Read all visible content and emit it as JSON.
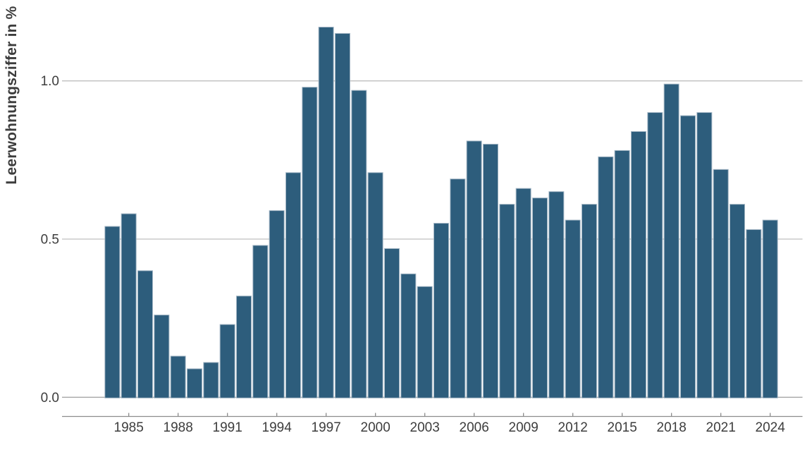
{
  "chart_data": {
    "type": "bar",
    "title": "",
    "ylabel": "Leerwohnungsziffer in %",
    "xlabel": "",
    "x": [
      1984,
      1985,
      1986,
      1987,
      1988,
      1989,
      1990,
      1991,
      1992,
      1993,
      1994,
      1995,
      1996,
      1997,
      1998,
      1999,
      2000,
      2001,
      2002,
      2003,
      2004,
      2005,
      2006,
      2007,
      2008,
      2009,
      2010,
      2011,
      2012,
      2013,
      2014,
      2015,
      2016,
      2017,
      2018,
      2019,
      2020,
      2021,
      2022,
      2023,
      2024
    ],
    "values": [
      0.54,
      0.58,
      0.4,
      0.26,
      0.13,
      0.09,
      0.11,
      0.23,
      0.32,
      0.48,
      0.59,
      0.71,
      0.98,
      1.17,
      1.15,
      0.97,
      0.71,
      0.47,
      0.39,
      0.35,
      0.55,
      0.69,
      0.81,
      0.8,
      0.61,
      0.66,
      0.63,
      0.65,
      0.56,
      0.61,
      0.76,
      0.78,
      0.84,
      0.9,
      0.99,
      0.89,
      0.9,
      0.72,
      0.61,
      0.53,
      0.56
    ],
    "y_ticks": [
      0,
      0.5,
      1.0
    ],
    "y_tick_labels": [
      "0.0",
      "0.5",
      "1.0"
    ],
    "x_tick_years": [
      1985,
      1988,
      1991,
      1994,
      1997,
      2000,
      2003,
      2006,
      2009,
      2012,
      2015,
      2018,
      2021,
      2024
    ],
    "ylim": [
      0,
      1.25
    ],
    "grid": true,
    "legend": "none",
    "colors": {
      "bar_fill": "#2d5d7c",
      "bar_stroke": "#a2b5c4",
      "gridline": "#bfbfbf",
      "baseline": "#a6a6a6",
      "axis_line": "#8c8c8c",
      "tick": "#8c8c8c",
      "label_text": "#3d3d3d"
    }
  }
}
